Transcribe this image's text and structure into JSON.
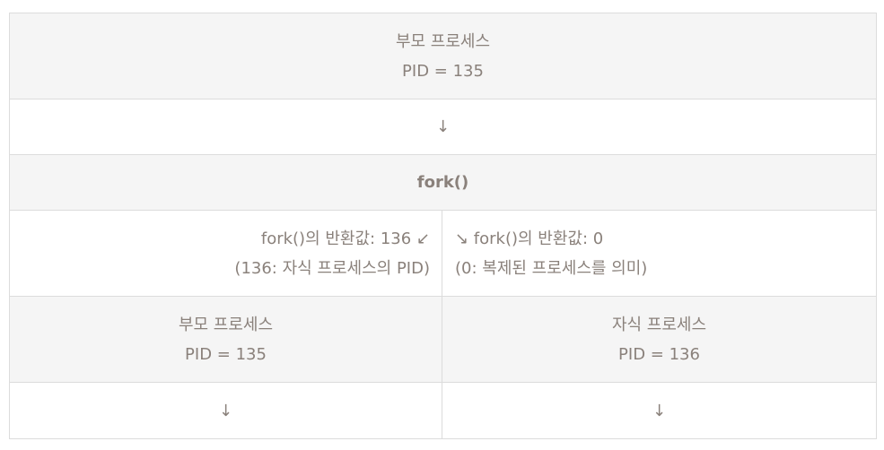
{
  "top": {
    "title": "부모 프로세스",
    "pid": "PID = 135"
  },
  "arrow_down": "↓",
  "fork_call": "fork()",
  "returns": {
    "parent": {
      "line1": "fork()의 반환값: 136 ↙",
      "line2": "(136: 자식 프로세스의 PID)"
    },
    "child": {
      "line1": "↘ fork()의 반환값: 0",
      "line2": "(0: 복제된 프로세스를 의미)"
    }
  },
  "parent_process": {
    "title": "부모 프로세스",
    "pid": "PID = 135"
  },
  "child_process": {
    "title": "자식 프로세스",
    "pid": "PID = 136"
  },
  "colors": {
    "text": "#8a817b",
    "shaded_row": "#f5f5f5",
    "border": "#dcdcdc"
  }
}
